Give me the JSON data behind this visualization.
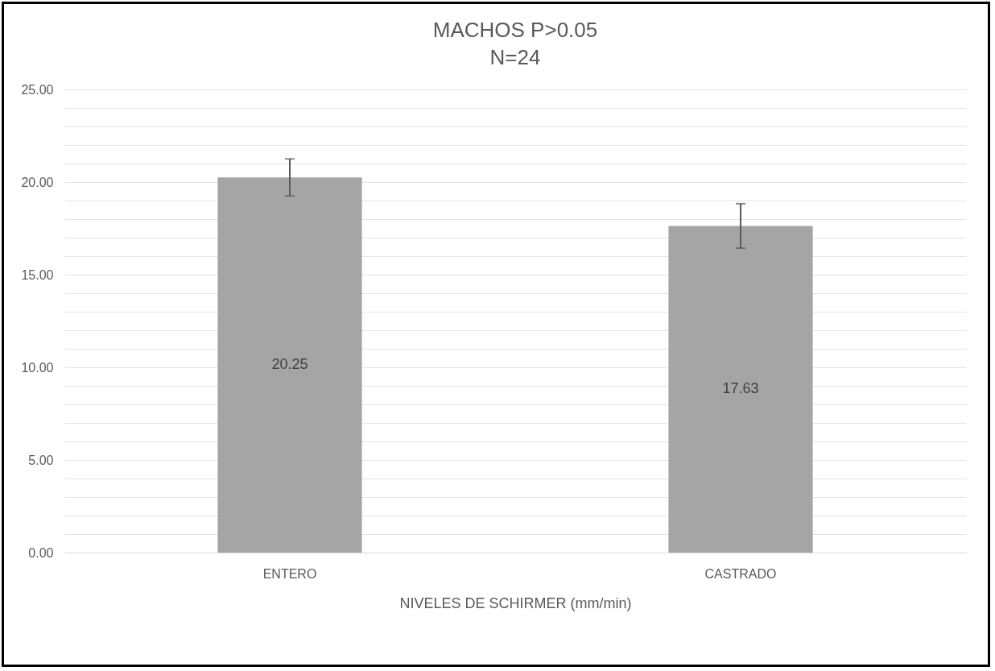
{
  "chart_data": {
    "type": "bar",
    "title": "MACHOS  P>0.05",
    "subtitle": "N=24",
    "xlabel": "NIVELES DE SCHIRMER (mm/min)",
    "categories": [
      "ENTERO",
      "CASTRADO"
    ],
    "values": [
      20.25,
      17.63
    ],
    "color": "#a5a5a5",
    "errors": [
      1.0,
      1.2
    ],
    "data_labels": true,
    "ylim": [
      0,
      25
    ],
    "yticks": [
      {
        "value": 0,
        "label": "0.00"
      },
      {
        "value": 1,
        "label": null
      },
      {
        "value": 2,
        "label": null
      },
      {
        "value": 3,
        "label": null
      },
      {
        "value": 4,
        "label": null
      },
      {
        "value": 5,
        "label": "5.00"
      },
      {
        "value": 6,
        "label": null
      },
      {
        "value": 7,
        "label": null
      },
      {
        "value": 8,
        "label": null
      },
      {
        "value": 9,
        "label": null
      },
      {
        "value": 10,
        "label": "10.00"
      },
      {
        "value": 11,
        "label": null
      },
      {
        "value": 12,
        "label": null
      },
      {
        "value": 13,
        "label": null
      },
      {
        "value": 14,
        "label": null
      },
      {
        "value": 15,
        "label": "15.00"
      },
      {
        "value": 16,
        "label": null
      },
      {
        "value": 17,
        "label": null
      },
      {
        "value": 18,
        "label": null
      },
      {
        "value": 19,
        "label": null
      },
      {
        "value": 20,
        "label": "20.00"
      },
      {
        "value": 21,
        "label": null
      },
      {
        "value": 22,
        "label": null
      },
      {
        "value": 23,
        "label": null
      },
      {
        "value": 24,
        "label": null
      },
      {
        "value": 25,
        "label": "25.00"
      }
    ],
    "grid": true
  }
}
